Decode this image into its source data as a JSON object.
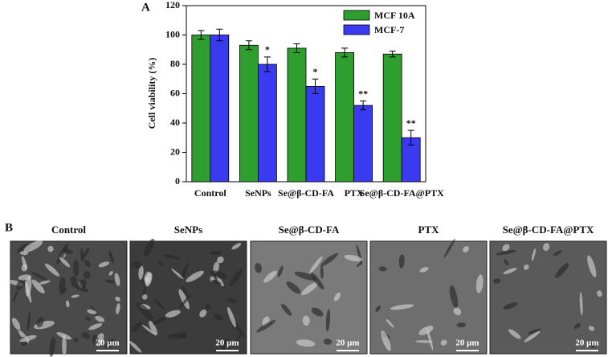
{
  "chart_data": {
    "type": "bar",
    "panel_label": "A",
    "ylabel": "Cell viability (%)",
    "categories": [
      "Control",
      "SeNPs",
      "Se@β-CD-FA",
      "PTX",
      "Se@β-CD-FA@PTX"
    ],
    "series": [
      {
        "name": "MCF 10A",
        "color": "#2e9e2e",
        "values": [
          100,
          93,
          91,
          88,
          87
        ],
        "errors": [
          3,
          3,
          3,
          3,
          2
        ]
      },
      {
        "name": "MCF-7",
        "color": "#3a3af0",
        "values": [
          100,
          80,
          65,
          52,
          30
        ],
        "errors": [
          4,
          5,
          5,
          3,
          5
        ]
      }
    ],
    "significance": [
      null,
      "*",
      "*",
      "**",
      "**"
    ],
    "ylim": [
      0,
      120
    ],
    "yticks": [
      0,
      20,
      40,
      60,
      80,
      100,
      120
    ],
    "legend": "top-right"
  },
  "panel_b": {
    "label": "B",
    "images": [
      {
        "title": "Control",
        "scale_bar": "20 μm"
      },
      {
        "title": "SeNPs",
        "scale_bar": "20 μm"
      },
      {
        "title": "Se@β-CD-FA",
        "scale_bar": "20 μm"
      },
      {
        "title": "PTX",
        "scale_bar": "20 μm"
      },
      {
        "title": "Se@β-CD-FA@PTX",
        "scale_bar": "20 μm"
      }
    ]
  }
}
